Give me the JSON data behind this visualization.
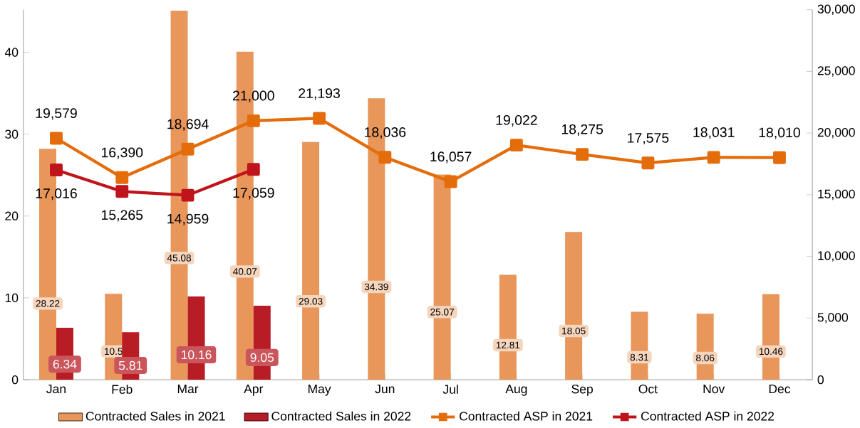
{
  "chart_data": {
    "type": "bar",
    "categories": [
      "Jan",
      "Feb",
      "Mar",
      "Apr",
      "May",
      "Jun",
      "Jul",
      "Aug",
      "Sep",
      "Oct",
      "Nov",
      "Dec"
    ],
    "series": [
      {
        "name": "Contracted Sales in 2021",
        "color": "#e8965a",
        "values": [
          28.22,
          10.5,
          45.08,
          40.07,
          29.03,
          34.39,
          25.07,
          12.81,
          18.05,
          8.31,
          8.06,
          10.46
        ],
        "value_labels": [
          "28.22",
          "10.5",
          "45.08",
          "40.07",
          "29.03",
          "34.39",
          "25.07",
          "12.81",
          "18.05",
          "8.31",
          "8.06",
          "10.46"
        ]
      },
      {
        "name": "Contracted Sales in 2022",
        "color": "#b81c24",
        "values": [
          6.34,
          5.81,
          10.16,
          9.05,
          null,
          null,
          null,
          null,
          null,
          null,
          null,
          null
        ],
        "value_labels": [
          "6.34",
          "5.81",
          "10.16",
          "9.05",
          null,
          null,
          null,
          null,
          null,
          null,
          null,
          null
        ]
      },
      {
        "name": "Contracted ASP in 2021",
        "type": "line",
        "axis": "y2",
        "color": "#e46c0a",
        "values": [
          19579,
          16390,
          18694,
          21000,
          21193,
          18036,
          16057,
          19022,
          18275,
          17575,
          18031,
          18010
        ],
        "value_labels": [
          "19,579",
          "16,390",
          "18,694",
          "21,000",
          "21,193",
          "18,036",
          "16,057",
          "19,022",
          "18,275",
          "17,575",
          "18,031",
          "18,010"
        ]
      },
      {
        "name": "Contracted ASP in 2022",
        "type": "line",
        "axis": "y2",
        "color": "#c0141c",
        "values": [
          17016,
          15265,
          14959,
          17059,
          null,
          null,
          null,
          null,
          null,
          null,
          null,
          null
        ],
        "value_labels": [
          "17,016",
          "15,265",
          "14,959",
          "17,059",
          null,
          null,
          null,
          null,
          null,
          null,
          null,
          null
        ]
      }
    ],
    "ylim": [
      0,
      45.2
    ],
    "yticks": [
      0,
      10,
      20,
      30,
      40
    ],
    "y2lim": [
      0,
      30000
    ],
    "y2ticks": [
      {
        "value": 0,
        "label": "0"
      },
      {
        "value": 5000,
        "label": "5,000"
      },
      {
        "value": 10000,
        "label": "10,000"
      },
      {
        "value": 15000,
        "label": "15,000"
      },
      {
        "value": 20000,
        "label": "20,000"
      },
      {
        "value": 25000,
        "label": "25,000"
      },
      {
        "value": 30000,
        "label": "30,000"
      }
    ],
    "legend": "bottom",
    "marker": "square"
  }
}
